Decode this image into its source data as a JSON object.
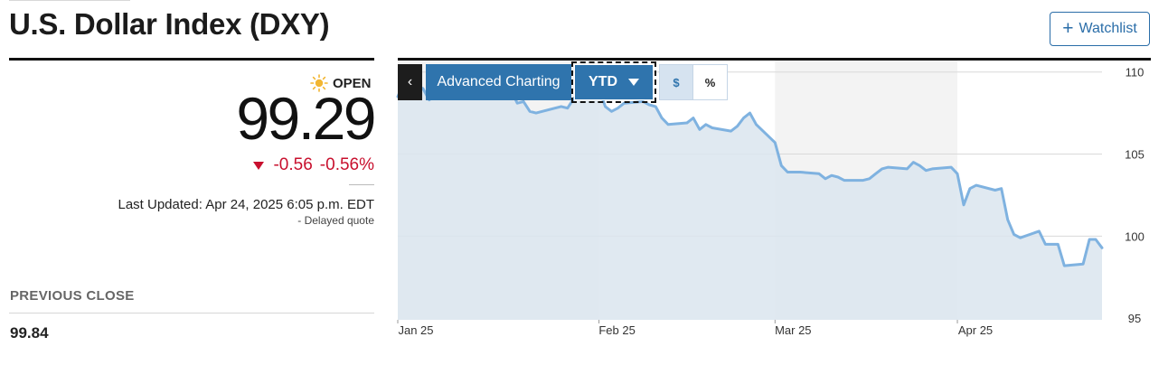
{
  "header": {
    "title": "U.S. Dollar Index (DXY)",
    "watchlist_label": "Watchlist"
  },
  "quote": {
    "status": "OPEN",
    "price": "99.29",
    "change": "-0.56",
    "change_percent": "-0.56%",
    "last_updated": "Last Updated: Apr 24, 2025 6:05 p.m. EDT",
    "delayed": "-  Delayed quote",
    "previous_close_label": "PREVIOUS CLOSE",
    "previous_close_value": "99.84"
  },
  "toolbar": {
    "back_icon": "chevron-left-icon",
    "advanced_label": "Advanced Charting",
    "range_label": "YTD",
    "dollar_label": "$",
    "percent_label": "%"
  },
  "colors": {
    "accent": "#2f74ad",
    "negative": "#c8102e",
    "line": "#7fb2e0",
    "area": "#dbe5ef"
  },
  "chart_data": {
    "type": "area",
    "title": "",
    "xlabel": "",
    "ylabel": "",
    "ylim": [
      94.9,
      110.7
    ],
    "yticks": [
      95,
      100,
      105,
      110
    ],
    "xticks": [
      {
        "label": "Jan 25",
        "date": "2025-01-02"
      },
      {
        "label": "Feb 25",
        "date": "2025-02-03"
      },
      {
        "label": "Mar 25",
        "date": "2025-03-03"
      },
      {
        "label": "Apr 25",
        "date": "2025-04-01"
      }
    ],
    "x_range": [
      "2025-01-02",
      "2025-04-24"
    ],
    "shaded_months": [
      [
        "2025-01-02",
        "2025-02-03"
      ],
      [
        "2025-03-03",
        "2025-04-01"
      ]
    ],
    "grid": true,
    "legend": "none",
    "x": [
      "2025-01-02",
      "2025-01-03",
      "2025-01-06",
      "2025-01-07",
      "2025-01-08",
      "2025-01-09",
      "2025-01-10",
      "2025-01-13",
      "2025-01-14",
      "2025-01-15",
      "2025-01-16",
      "2025-01-17",
      "2025-01-20",
      "2025-01-21",
      "2025-01-22",
      "2025-01-23",
      "2025-01-24",
      "2025-01-27",
      "2025-01-28",
      "2025-01-29",
      "2025-01-30",
      "2025-01-31",
      "2025-02-03",
      "2025-02-04",
      "2025-02-05",
      "2025-02-06",
      "2025-02-07",
      "2025-02-10",
      "2025-02-11",
      "2025-02-12",
      "2025-02-13",
      "2025-02-14",
      "2025-02-17",
      "2025-02-18",
      "2025-02-19",
      "2025-02-20",
      "2025-02-21",
      "2025-02-24",
      "2025-02-25",
      "2025-02-26",
      "2025-02-27",
      "2025-02-28",
      "2025-03-03",
      "2025-03-04",
      "2025-03-05",
      "2025-03-06",
      "2025-03-07",
      "2025-03-10",
      "2025-03-11",
      "2025-03-12",
      "2025-03-13",
      "2025-03-14",
      "2025-03-17",
      "2025-03-18",
      "2025-03-19",
      "2025-03-20",
      "2025-03-21",
      "2025-03-24",
      "2025-03-25",
      "2025-03-26",
      "2025-03-27",
      "2025-03-28",
      "2025-03-31",
      "2025-04-01",
      "2025-04-02",
      "2025-04-03",
      "2025-04-04",
      "2025-04-07",
      "2025-04-08",
      "2025-04-09",
      "2025-04-10",
      "2025-04-11",
      "2025-04-14",
      "2025-04-15",
      "2025-04-16",
      "2025-04-17",
      "2025-04-18",
      "2025-04-21",
      "2025-04-22",
      "2025-04-23",
      "2025-04-24"
    ],
    "series": [
      {
        "values": [
          108.5,
          109.4,
          109.0,
          108.3,
          108.6,
          109.1,
          109.1,
          109.7,
          109.9,
          109.2,
          109.1,
          109.3,
          108.9,
          108.1,
          108.2,
          107.6,
          107.5,
          107.8,
          107.9,
          107.8,
          108.4,
          108.4,
          109.0,
          107.9,
          107.6,
          107.8,
          108.1,
          108.2,
          108.0,
          107.9,
          107.2,
          106.8,
          106.9,
          107.2,
          106.5,
          106.8,
          106.6,
          106.4,
          106.7,
          107.2,
          107.5,
          106.8,
          105.7,
          104.3,
          103.9,
          103.9,
          103.9,
          103.8,
          103.5,
          103.7,
          103.6,
          103.4,
          103.4,
          103.5,
          103.8,
          104.1,
          104.2,
          104.1,
          104.5,
          104.3,
          104.0,
          104.1,
          104.2,
          103.8,
          101.9,
          102.9,
          103.1,
          102.8,
          102.9,
          101.0,
          100.1,
          99.9,
          100.3,
          99.5,
          99.5,
          99.5,
          98.2,
          98.3,
          99.8,
          99.8,
          99.29
        ]
      }
    ]
  }
}
